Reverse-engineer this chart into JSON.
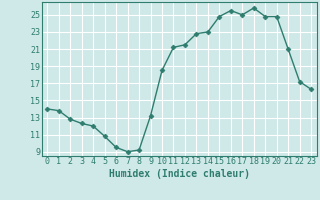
{
  "x": [
    0,
    1,
    2,
    3,
    4,
    5,
    6,
    7,
    8,
    9,
    10,
    11,
    12,
    13,
    14,
    15,
    16,
    17,
    18,
    19,
    20,
    21,
    22,
    23
  ],
  "y": [
    14.0,
    13.8,
    12.8,
    12.3,
    12.0,
    10.8,
    9.5,
    9.0,
    9.2,
    13.2,
    18.5,
    21.2,
    21.5,
    22.8,
    23.0,
    24.8,
    25.5,
    25.0,
    25.8,
    24.8,
    24.8,
    21.0,
    17.2,
    16.3
  ],
  "line_color": "#2e7d6e",
  "marker": "D",
  "markersize": 2.5,
  "linewidth": 1.0,
  "xlabel": "Humidex (Indice chaleur)",
  "xlim": [
    -0.5,
    23.5
  ],
  "ylim": [
    8.5,
    26.5
  ],
  "yticks": [
    9,
    11,
    13,
    15,
    17,
    19,
    21,
    23,
    25
  ],
  "xticks": [
    0,
    1,
    2,
    3,
    4,
    5,
    6,
    7,
    8,
    9,
    10,
    11,
    12,
    13,
    14,
    15,
    16,
    17,
    18,
    19,
    20,
    21,
    22,
    23
  ],
  "bg_color": "#cfe8e8",
  "grid_color": "#ffffff",
  "tick_color": "#2e7d6e",
  "label_color": "#2e7d6e",
  "xlabel_fontsize": 7,
  "tick_fontsize": 6
}
